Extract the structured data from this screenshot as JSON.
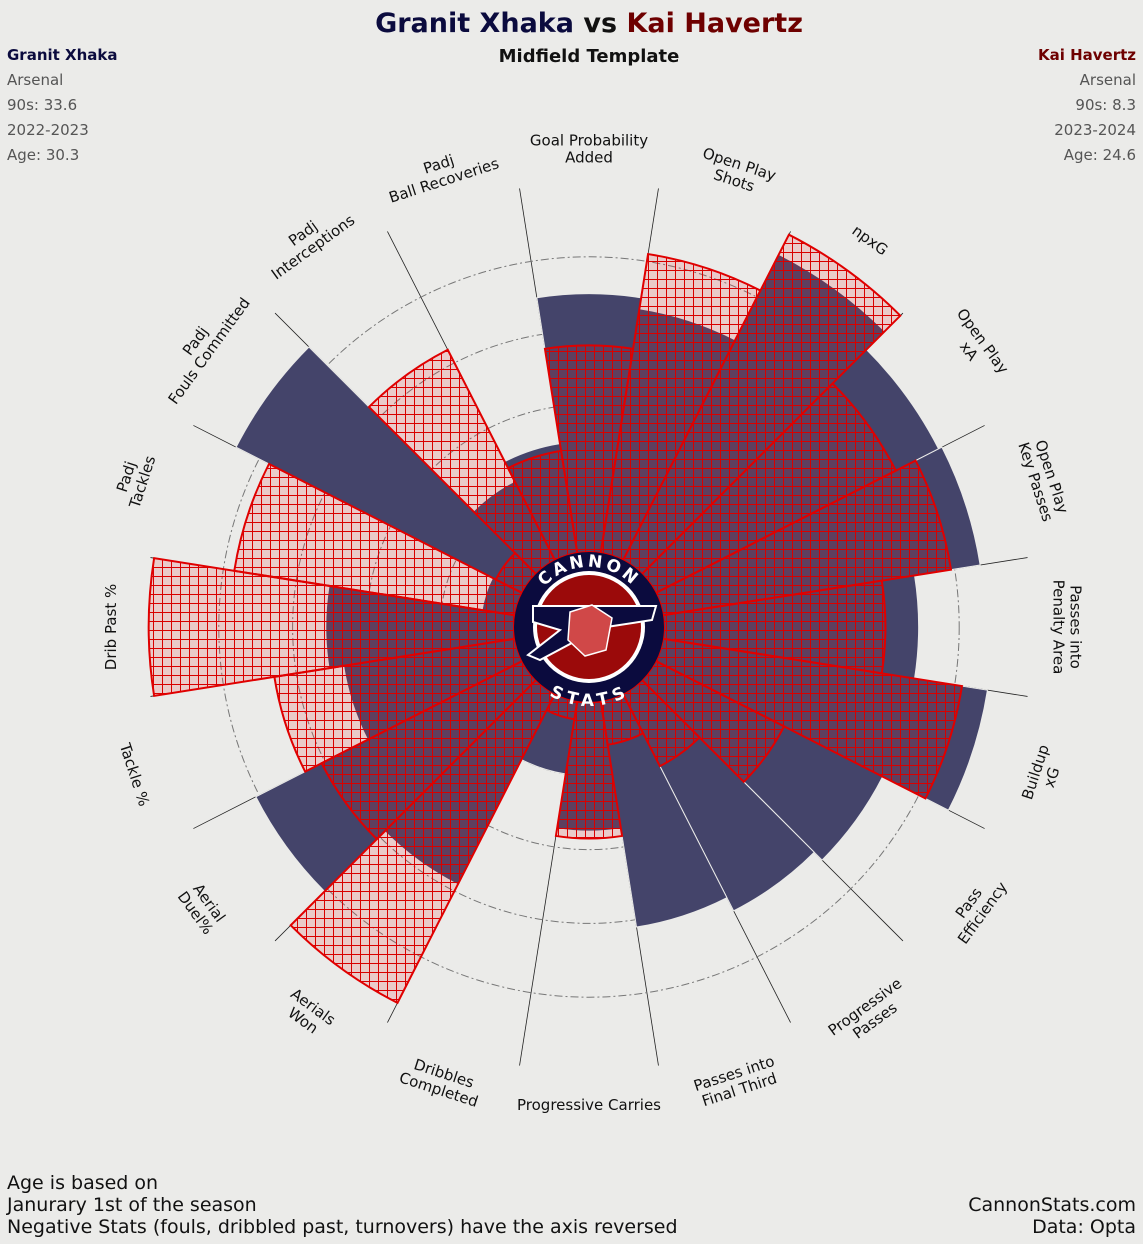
{
  "chart_data": {
    "type": "polar_bar",
    "title_separator": "vs",
    "subtitle": "Midfield Template",
    "categories": [
      "Goal Probability\nAdded",
      "Open Play\nShots",
      "npxG",
      "Open Play\nxA",
      "Open Play\nKey Passes",
      "Passes into\nPenalty Area",
      "Buildup\nxG",
      "Pass\nEfficiency",
      "Progressive\nPasses",
      "Passes into\nFinal Third",
      "Progressive Carries",
      "Dribbles\nCompleted",
      "Aerials\nWon",
      "Aerial\nDuel%",
      "Tackle %",
      "Drib Past %",
      "Padj\nTackles",
      "Padj\nFouls Committed",
      "Padj\nInterceptions",
      "Padj\nBall Recoveries"
    ],
    "series": [
      {
        "name": "Granit Xhaka",
        "color": "#44446a",
        "info": [
          "Arsenal",
          "90s: 33.6",
          "2022-2023",
          "Age: 30.3"
        ],
        "values": [
          70,
          67,
          93,
          86,
          87,
          69,
          89,
          69,
          66,
          62,
          35,
          20,
          58,
          81,
          47,
          51,
          9,
          87,
          24,
          30
        ]
      },
      {
        "name": "Kai Havertz",
        "color": "#e00000",
        "info": [
          "Arsenal",
          "90s: 8.3",
          "2023-2024",
          "Age: 24.6"
        ],
        "values": [
          56,
          82,
          99,
          73,
          79,
          60,
          82,
          39,
          22,
          12,
          37,
          5,
          94,
          61,
          66,
          99,
          77,
          8,
          64,
          28
        ]
      }
    ],
    "rlim": [
      0,
      100
    ],
    "rticks": [
      20,
      40,
      60,
      80
    ],
    "logo": {
      "top": "CANNON",
      "bottom": "STATS"
    },
    "notes": [
      "Age is based on",
      "Janurary 1st of the season",
      "Negative Stats (fouls, dribbled past, turnovers) have the axis reversed"
    ],
    "credits": [
      "CannonStats.com",
      "Data: Opta"
    ]
  }
}
